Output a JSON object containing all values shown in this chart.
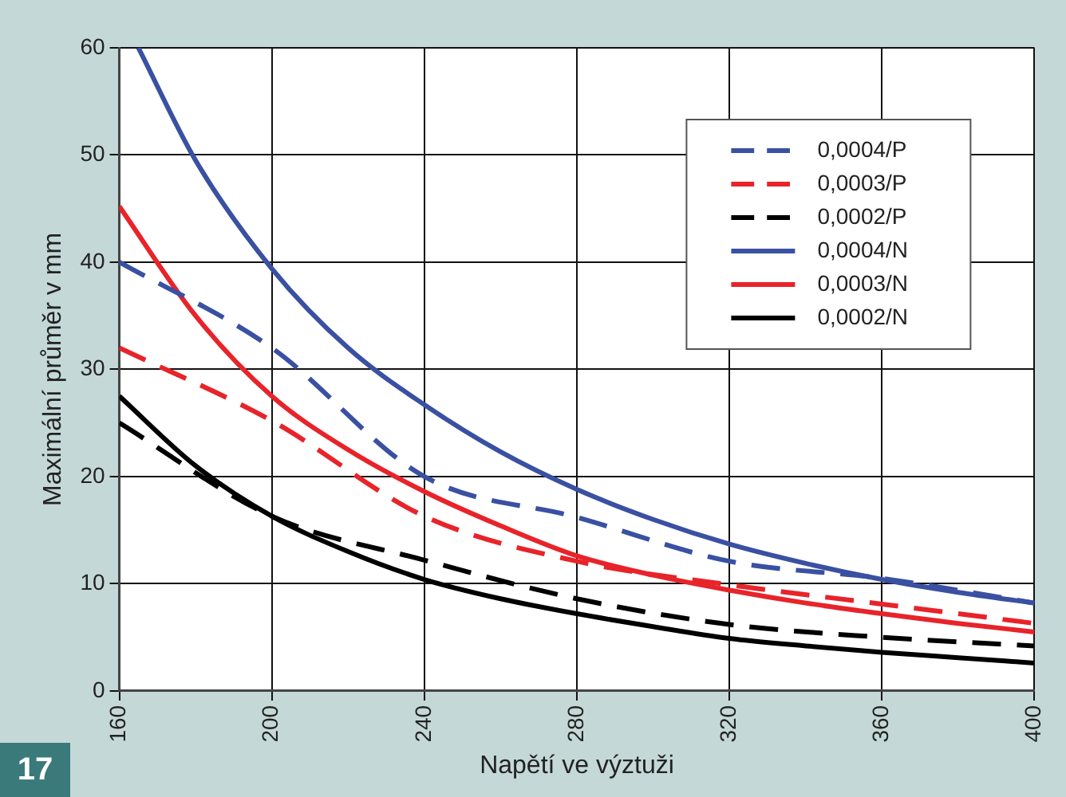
{
  "chart_data": {
    "type": "line",
    "xlabel": "Napětí ve výztuži",
    "ylabel": "Maximální průměr v mm",
    "annotations": [
      "17"
    ],
    "xlim": [
      160,
      400
    ],
    "xticks": [
      160,
      200,
      240,
      280,
      320,
      360,
      400
    ],
    "ylim": [
      0,
      60
    ],
    "yticks": [
      0,
      10,
      20,
      30,
      40,
      50,
      60
    ],
    "grid": true,
    "legend": "top right",
    "marker": "none",
    "series": [
      {
        "name": "0,0004/P",
        "color": "#3a50a2",
        "line_style": "dashed",
        "x": [
          160,
          200,
          240,
          280,
          320,
          360,
          400
        ],
        "values": [
          40,
          32,
          20,
          16.2,
          12.1,
          10.5,
          8.2
        ]
      },
      {
        "name": "0,0003/P",
        "color": "#e8232a",
        "line_style": "dashed",
        "x": [
          160,
          200,
          240,
          280,
          320,
          360,
          400
        ],
        "values": [
          32,
          25.2,
          16.3,
          12.1,
          9.9,
          8.1,
          6.3
        ]
      },
      {
        "name": "0,0002/P",
        "color": "#000000",
        "line_style": "dashed",
        "x": [
          160,
          200,
          240,
          280,
          320,
          360,
          400
        ],
        "values": [
          25,
          16.3,
          12.2,
          8.6,
          6.2,
          5,
          4.2
        ]
      },
      {
        "name": "0,0004/N",
        "color": "#3a50a2",
        "line_style": "solid",
        "x": [
          165,
          180,
          200,
          220,
          240,
          260,
          280,
          300,
          320,
          340,
          360,
          380,
          400
        ],
        "values": [
          60,
          49.5,
          39.4,
          32,
          26.7,
          22.3,
          18.8,
          16,
          13.7,
          11.9,
          10.4,
          9.2,
          8.2
        ]
      },
      {
        "name": "0,0003/N",
        "color": "#e8232a",
        "line_style": "solid",
        "x": [
          160,
          180,
          200,
          220,
          240,
          260,
          280,
          300,
          320,
          340,
          360,
          380,
          400
        ],
        "values": [
          45.2,
          35,
          27.5,
          22.5,
          18.6,
          15.4,
          12.6,
          10.8,
          9.4,
          8.2,
          7.2,
          6.3,
          5.5
        ]
      },
      {
        "name": "0,0002/N",
        "color": "#000000",
        "line_style": "solid",
        "x": [
          160,
          180,
          200,
          220,
          240,
          260,
          280,
          300,
          320,
          340,
          360,
          380,
          400
        ],
        "values": [
          27.5,
          21,
          16.3,
          13,
          10.4,
          8.6,
          7.2,
          6,
          4.9,
          4.2,
          3.6,
          3.1,
          2.6
        ]
      }
    ]
  }
}
